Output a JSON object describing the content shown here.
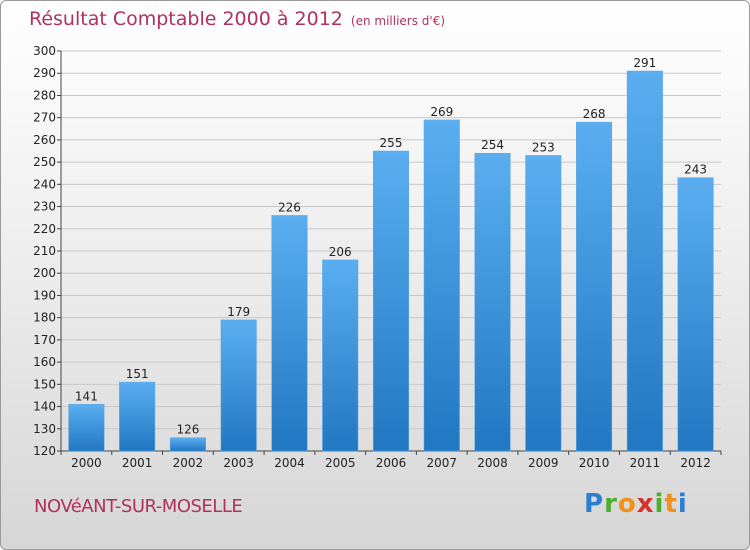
{
  "header": {
    "title": "Résultat Comptable 2000 à 2012",
    "unit_note": "(en milliers d'€)"
  },
  "footer": {
    "commune": "NOVéANT-SUR-MOSELLE",
    "logo_letters": [
      "P",
      "r",
      "o",
      "x",
      "i",
      "t",
      "i"
    ]
  },
  "colors": {
    "title": "#b0325a",
    "bar_top": "#5aaef0",
    "bar_bottom": "#2277c2",
    "grid": "#c8c8c8",
    "logo": [
      "#2a7fd2",
      "#4cae2c",
      "#f09018",
      "#d8302a",
      "#4cae2c",
      "#f09018",
      "#2a7fd2"
    ]
  },
  "chart_data": {
    "type": "bar",
    "title": "Résultat Comptable 2000 à 2012",
    "subtitle": "(en milliers d'€)",
    "categories": [
      "2000",
      "2001",
      "2002",
      "2003",
      "2004",
      "2005",
      "2006",
      "2007",
      "2008",
      "2009",
      "2010",
      "2011",
      "2012"
    ],
    "values": [
      141,
      151,
      126,
      179,
      226,
      206,
      255,
      269,
      254,
      253,
      268,
      291,
      243
    ],
    "ylim": [
      120,
      300
    ],
    "yticks": [
      120,
      130,
      140,
      150,
      160,
      170,
      180,
      190,
      200,
      210,
      220,
      230,
      240,
      250,
      260,
      270,
      280,
      290,
      300
    ],
    "grid": true,
    "legend": "none"
  }
}
